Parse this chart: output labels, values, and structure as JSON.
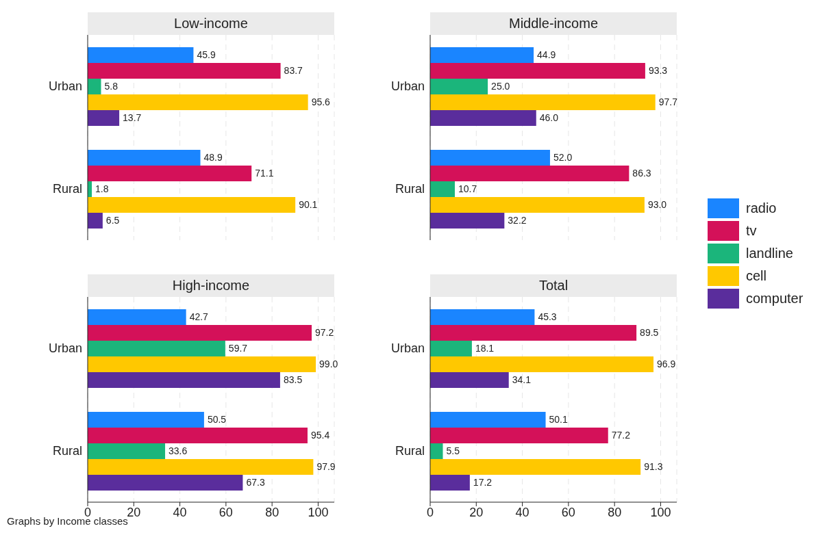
{
  "chart_data": [
    {
      "type": "bar",
      "orientation": "horizontal",
      "title": "Low-income",
      "categories": [
        "Urban",
        "Rural"
      ],
      "series": [
        {
          "name": "radio",
          "color": "#1a85ff",
          "values": [
            45.9,
            48.9
          ],
          "value_labels": [
            "45.9",
            "48.9"
          ]
        },
        {
          "name": "tv",
          "color": "#d41159",
          "values": [
            83.7,
            71.1
          ],
          "value_labels": [
            "83.7",
            "71.1"
          ]
        },
        {
          "name": "landline",
          "color": "#1bb57b",
          "values": [
            5.8,
            1.8
          ],
          "value_labels": [
            "5.8",
            "1.8"
          ]
        },
        {
          "name": "cell",
          "color": "#ffc800",
          "values": [
            95.6,
            90.1
          ],
          "value_labels": [
            "95.6",
            "90.1"
          ]
        },
        {
          "name": "computer",
          "color": "#5a2d9c",
          "values": [
            13.7,
            6.5
          ],
          "value_labels": [
            "13.7",
            "6.5"
          ]
        }
      ],
      "xlim": [
        0,
        107
      ],
      "xticks": [
        0,
        20,
        40,
        60,
        80,
        100
      ],
      "tick_labels": "y",
      "grid": "x",
      "legend": "right"
    },
    {
      "type": "bar",
      "orientation": "horizontal",
      "title": "Middle-income",
      "categories": [
        "Urban",
        "Rural"
      ],
      "series": [
        {
          "color": "#1a85ff",
          "values": [
            44.9,
            52.0
          ],
          "value_labels": [
            "44.9",
            "52.0"
          ]
        },
        {
          "color": "#d41159",
          "values": [
            93.3,
            86.3
          ],
          "value_labels": [
            "93.3",
            "86.3"
          ]
        },
        {
          "color": "#1bb57b",
          "values": [
            25.0,
            10.7
          ],
          "value_labels": [
            "25.0",
            "10.7"
          ]
        },
        {
          "color": "#ffc800",
          "values": [
            97.7,
            93.0
          ],
          "value_labels": [
            "97.7",
            "93.0"
          ]
        },
        {
          "color": "#5a2d9c",
          "values": [
            46.0,
            32.2
          ],
          "value_labels": [
            "46.0",
            "32.2"
          ]
        }
      ],
      "xlim": [
        0,
        107
      ],
      "xticks": [
        0,
        20,
        40,
        60,
        80,
        100
      ],
      "tick_labels": "y",
      "grid": "x"
    },
    {
      "type": "bar",
      "orientation": "horizontal",
      "title": "High-income",
      "categories": [
        "Urban",
        "Rural"
      ],
      "series": [
        {
          "color": "#1a85ff",
          "values": [
            42.7,
            50.5
          ],
          "value_labels": [
            "42.7",
            "50.5"
          ]
        },
        {
          "color": "#d41159",
          "values": [
            97.2,
            95.4
          ],
          "value_labels": [
            "97.2",
            "95.4"
          ]
        },
        {
          "color": "#1bb57b",
          "values": [
            59.7,
            33.6
          ],
          "value_labels": [
            "59.7",
            "33.6"
          ]
        },
        {
          "color": "#ffc800",
          "values": [
            99.0,
            97.9
          ],
          "value_labels": [
            "99.0",
            "97.9"
          ]
        },
        {
          "color": "#5a2d9c",
          "values": [
            83.5,
            67.3
          ],
          "value_labels": [
            "83.5",
            "67.3"
          ]
        }
      ],
      "xlim": [
        0,
        107
      ],
      "xticks": [
        0,
        20,
        40,
        60,
        80,
        100
      ],
      "grid": "x",
      "annotations": [
        "Graphs by Income classes"
      ]
    },
    {
      "type": "bar",
      "orientation": "horizontal",
      "title": "Total",
      "categories": [
        "Urban",
        "Rural"
      ],
      "series": [
        {
          "color": "#1a85ff",
          "values": [
            45.3,
            50.1
          ],
          "value_labels": [
            "45.3",
            "50.1"
          ]
        },
        {
          "color": "#d41159",
          "values": [
            89.5,
            77.2
          ],
          "value_labels": [
            "89.5",
            "77.2"
          ]
        },
        {
          "color": "#1bb57b",
          "values": [
            18.1,
            5.5
          ],
          "value_labels": [
            "18.1",
            "5.5"
          ]
        },
        {
          "color": "#ffc800",
          "values": [
            96.9,
            91.3
          ],
          "value_labels": [
            "96.9",
            "91.3"
          ]
        },
        {
          "color": "#5a2d9c",
          "values": [
            34.1,
            17.2
          ],
          "value_labels": [
            "34.1",
            "17.2"
          ]
        }
      ],
      "xlim": [
        0,
        107
      ],
      "xticks": [
        0,
        20,
        40,
        60,
        80,
        100
      ],
      "grid": "x"
    }
  ]
}
